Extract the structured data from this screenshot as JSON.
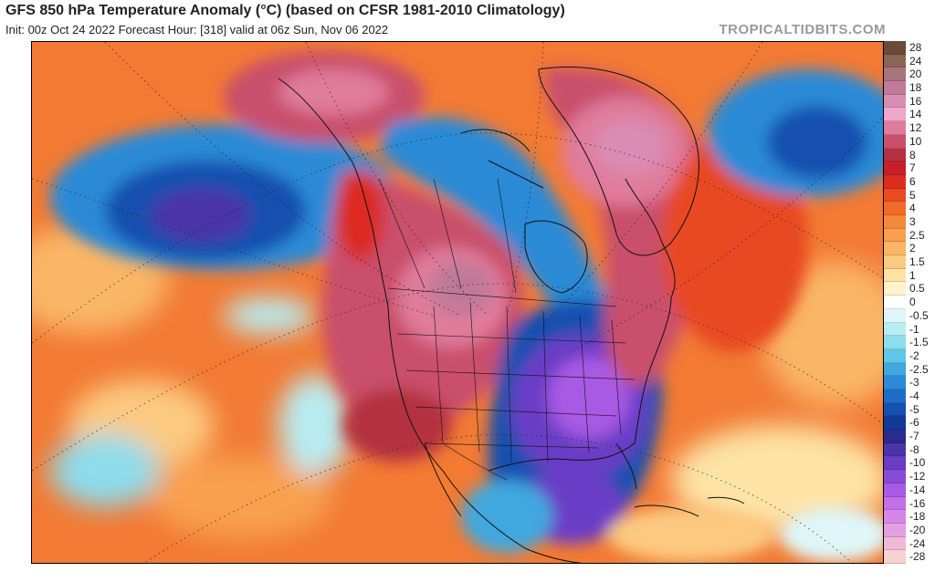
{
  "header": {
    "title": "GFS 850 hPa Temperature Anomaly (°C) (based on CFSR 1981-2010 Climatology)",
    "subtitle": "Init: 00z Oct 24 2022   Forecast Hour: [318]   valid at 06z Sun, Nov 06 2022",
    "brand": "TROPICALTIDBITS.COM"
  },
  "legend": {
    "items": [
      {
        "label": "28",
        "color": "#6b4a3a"
      },
      {
        "label": "24",
        "color": "#8a6456"
      },
      {
        "label": "20",
        "color": "#a8727e"
      },
      {
        "label": "18",
        "color": "#c07a98"
      },
      {
        "label": "16",
        "color": "#d98db4"
      },
      {
        "label": "14",
        "color": "#eea6ca"
      },
      {
        "label": "12",
        "color": "#e07b9c"
      },
      {
        "label": "10",
        "color": "#c9506c"
      },
      {
        "label": "8",
        "color": "#b43040"
      },
      {
        "label": "7",
        "color": "#c81e2a"
      },
      {
        "label": "6",
        "color": "#dc2c22"
      },
      {
        "label": "5",
        "color": "#e84a22"
      },
      {
        "label": "4",
        "color": "#f06a2a"
      },
      {
        "label": "3",
        "color": "#f5893a"
      },
      {
        "label": "2.5",
        "color": "#f8a04e"
      },
      {
        "label": "2",
        "color": "#fab566"
      },
      {
        "label": "1.5",
        "color": "#fcc980"
      },
      {
        "label": "1",
        "color": "#fde3a6"
      },
      {
        "label": "0.5",
        "color": "#fff3cc"
      },
      {
        "label": "0",
        "color": "#ffffff"
      },
      {
        "label": "-0.5",
        "color": "#dff6f8"
      },
      {
        "label": "-1",
        "color": "#b8ecf2"
      },
      {
        "label": "-1.5",
        "color": "#8ddcec"
      },
      {
        "label": "-2",
        "color": "#62c6e6"
      },
      {
        "label": "-2.5",
        "color": "#3fa8de"
      },
      {
        "label": "-3",
        "color": "#2c8ad6"
      },
      {
        "label": "-4",
        "color": "#1f6cc8"
      },
      {
        "label": "-5",
        "color": "#1650b0"
      },
      {
        "label": "-6",
        "color": "#123a98"
      },
      {
        "label": "-7",
        "color": "#2a2c8c"
      },
      {
        "label": "-8",
        "color": "#4a34a8"
      },
      {
        "label": "-10",
        "color": "#6a3cc6"
      },
      {
        "label": "-12",
        "color": "#8a4ad8"
      },
      {
        "label": "-14",
        "color": "#a85ae4"
      },
      {
        "label": "-16",
        "color": "#c46ee8"
      },
      {
        "label": "-18",
        "color": "#d886e6"
      },
      {
        "label": "-20",
        "color": "#e4a0e0"
      },
      {
        "label": "-24",
        "color": "#eebad6"
      },
      {
        "label": "-28",
        "color": "#f6d2d0"
      }
    ]
  },
  "map": {
    "region": "North America",
    "colors": {
      "ocean_warm": "#f06a2a",
      "land_warm": "#c9506c",
      "cold_core": "#8a4ad8",
      "cool": "#2c8ad6",
      "border": "#111111"
    }
  }
}
